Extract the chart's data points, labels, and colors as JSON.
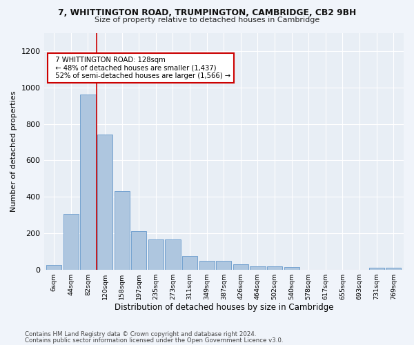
{
  "title1": "7, WHITTINGTON ROAD, TRUMPINGTON, CAMBRIDGE, CB2 9BH",
  "title2": "Size of property relative to detached houses in Cambridge",
  "xlabel": "Distribution of detached houses by size in Cambridge",
  "ylabel": "Number of detached properties",
  "footer1": "Contains HM Land Registry data © Crown copyright and database right 2024.",
  "footer2": "Contains public sector information licensed under the Open Government Licence v3.0.",
  "bin_labels": [
    "6sqm",
    "44sqm",
    "82sqm",
    "120sqm",
    "158sqm",
    "197sqm",
    "235sqm",
    "273sqm",
    "311sqm",
    "349sqm",
    "387sqm",
    "426sqm",
    "464sqm",
    "502sqm",
    "540sqm",
    "578sqm",
    "617sqm",
    "655sqm",
    "693sqm",
    "731sqm",
    "769sqm"
  ],
  "bar_values": [
    25,
    305,
    960,
    740,
    430,
    210,
    165,
    165,
    75,
    48,
    48,
    30,
    18,
    18,
    15,
    0,
    0,
    0,
    0,
    12,
    12
  ],
  "bar_color": "#aec6df",
  "bar_edge_color": "#6699cc",
  "red_line_x": 2.5,
  "red_line_color": "#cc0000",
  "annotation_text": "  7 WHITTINGTON ROAD: 128sqm\n  ← 48% of detached houses are smaller (1,437)\n  52% of semi-detached houses are larger (1,566) →",
  "annotation_box_color": "#ffffff",
  "annotation_box_edge": "#cc0000",
  "ylim": [
    0,
    1300
  ],
  "yticks": [
    0,
    200,
    400,
    600,
    800,
    1000,
    1200
  ],
  "bg_color": "#f0f4fa",
  "plot_bg_color": "#e8eef5"
}
